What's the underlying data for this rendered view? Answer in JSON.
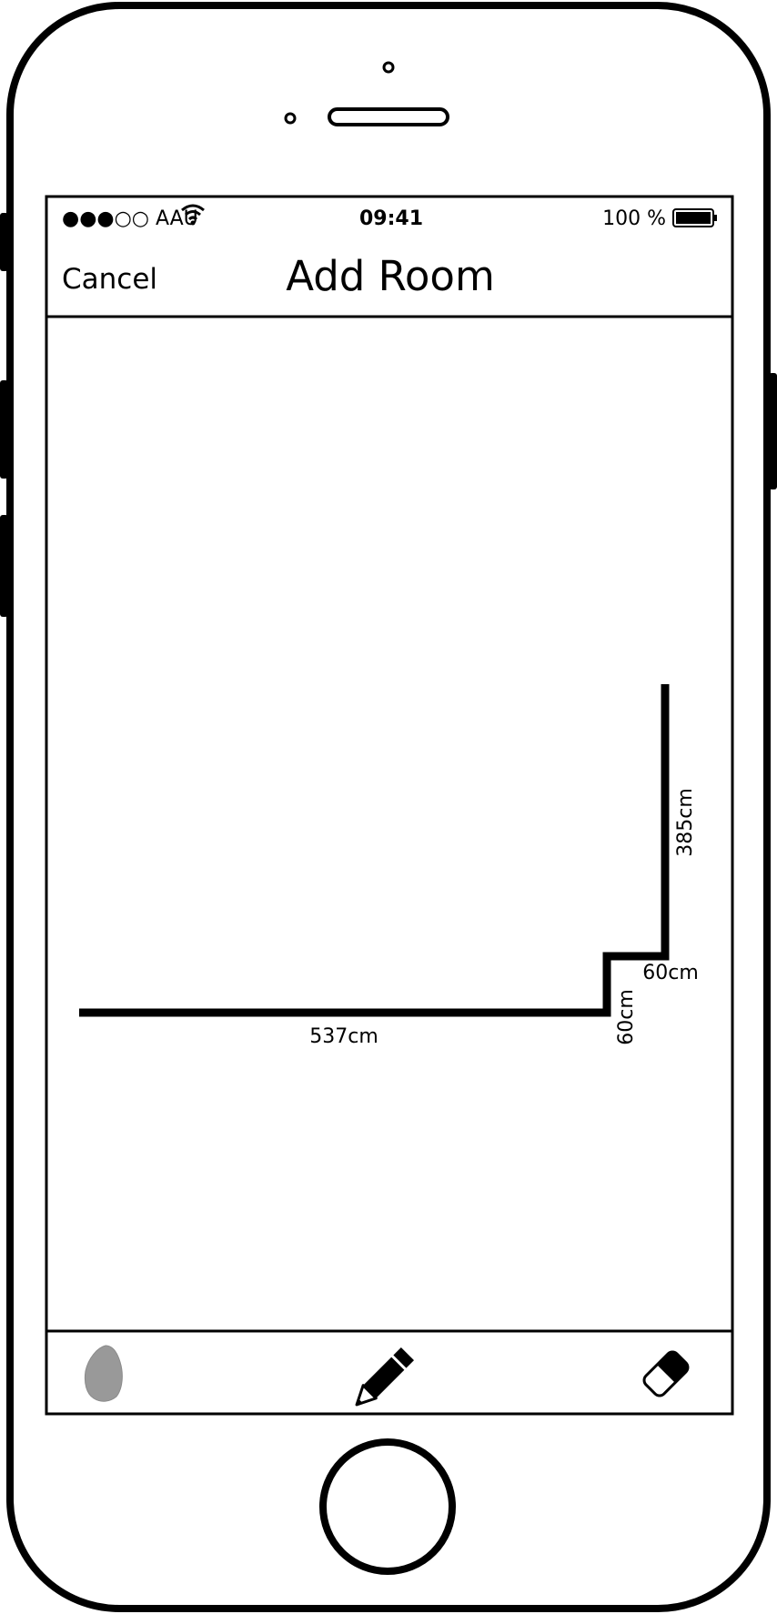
{
  "status_bar": {
    "carrier": "●●●○○ AAU",
    "time": "09:41",
    "battery": "100 %"
  },
  "nav_bar": {
    "cancel_label": "Cancel",
    "title": "Add Room"
  },
  "floor_plan": {
    "wall_dimensions": {
      "bottom_wall": "537cm",
      "step_vertical": "60cm",
      "step_horizontal": "60cm",
      "right_wall": "385cm"
    }
  },
  "toolbar": {
    "items": [
      "beacon-icon",
      "pencil-icon",
      "eraser-icon"
    ]
  },
  "colors": {
    "outline": "#000000",
    "beacon": "#999999",
    "background": "#ffffff"
  }
}
